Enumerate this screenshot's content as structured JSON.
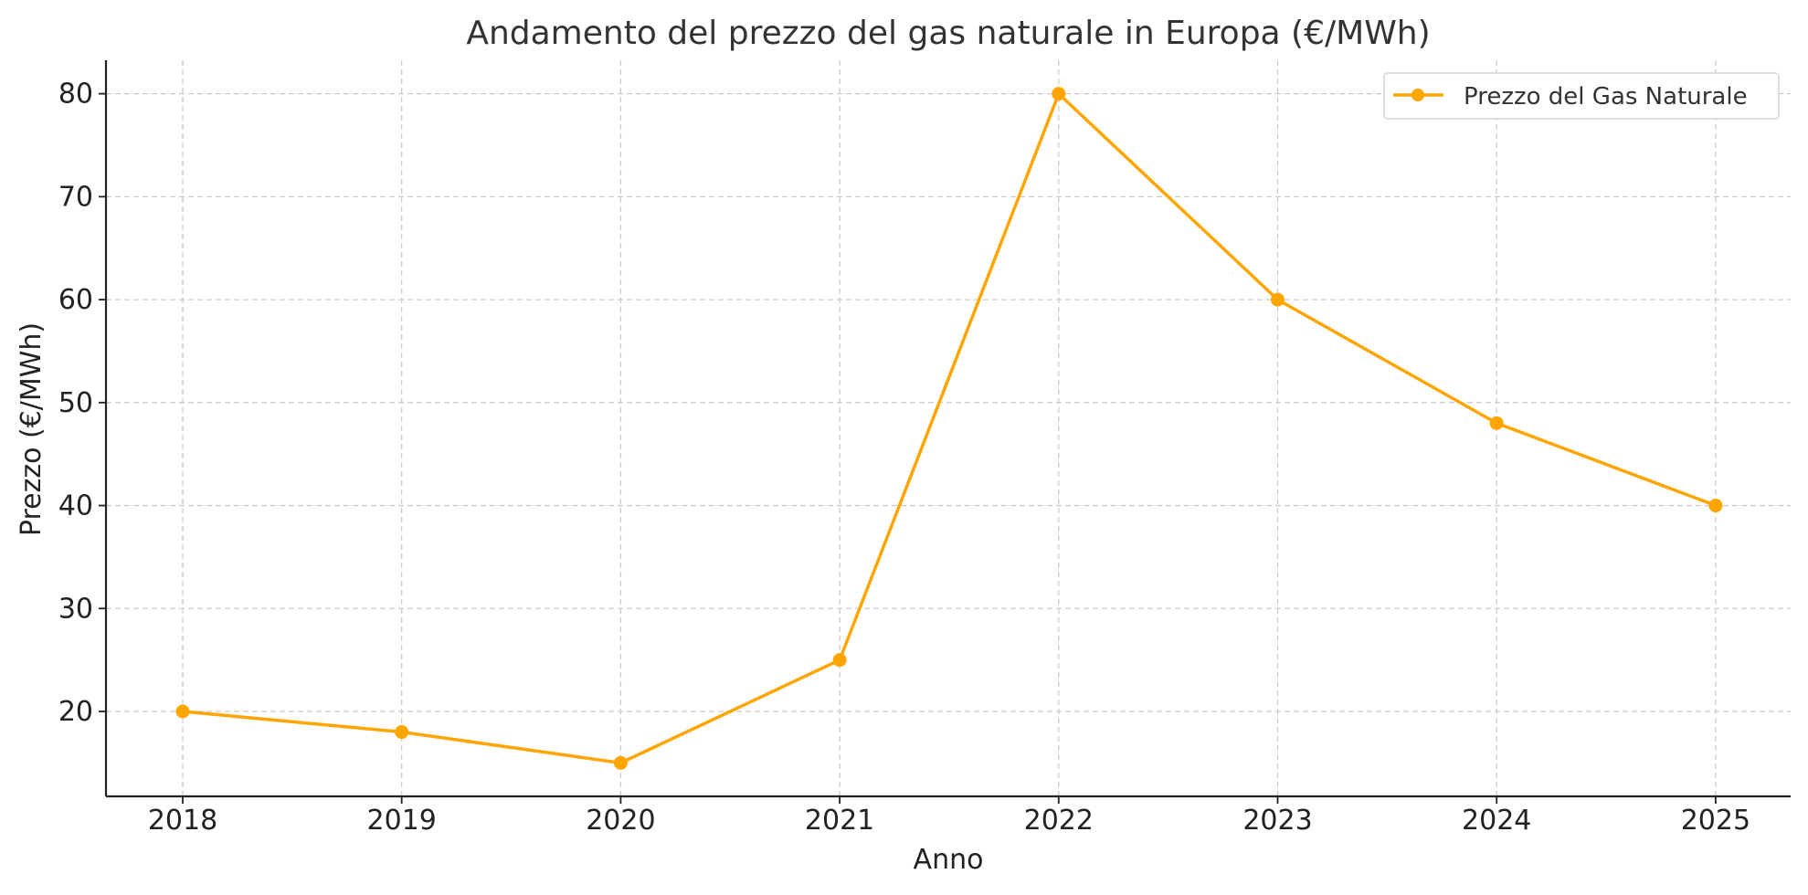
{
  "chart_data": {
    "type": "line",
    "title": "Andamento del prezzo del gas naturale in Europa (€/MWh)",
    "xlabel": "Anno",
    "ylabel": "Prezzo (€/MWh)",
    "categories": [
      "2018",
      "2019",
      "2020",
      "2021",
      "2022",
      "2023",
      "2024",
      "2025"
    ],
    "series": [
      {
        "name": "Prezzo del Gas Naturale",
        "values": [
          20,
          18,
          15,
          25,
          80,
          60,
          48,
          40
        ],
        "color": "#FFA500",
        "marker": "circle"
      }
    ],
    "yticks": [
      "20",
      "30",
      "40",
      "50",
      "60",
      "70",
      "80"
    ],
    "ylim": [
      11.75,
      83.25
    ],
    "grid": true,
    "legend_position": "top-right"
  }
}
